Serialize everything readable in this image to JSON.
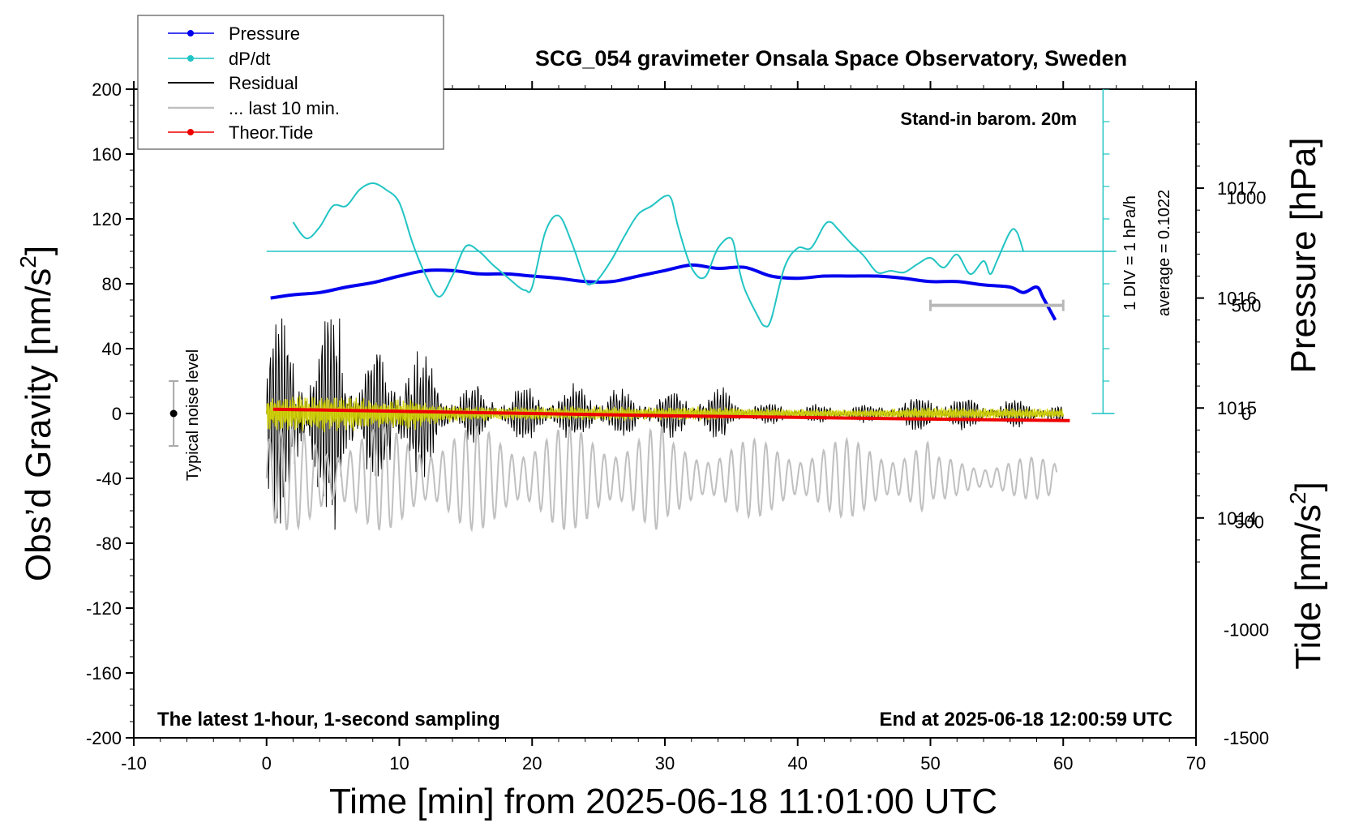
{
  "chart_data": {
    "type": "line",
    "title": "SCG_054 gravimeter Onsala Space Observatory, Sweden",
    "xlabel": "Time [min] from 2025-06-18 11:01:00 UTC",
    "ylabel_left_main": "Obs’d Gravity [nm/s",
    "ylabel_left_sup": "2",
    "ylabel_left_close": "]",
    "ylabel_right_top": "Pressure [hPa]",
    "ylabel_right_bottom_main": "Tide [nm/s",
    "ylabel_right_bottom_sup": "2",
    "ylabel_right_bottom_close": "]",
    "xlim": [
      -10,
      70
    ],
    "ylim": [
      -200,
      200
    ],
    "pressure_lim": [
      1012,
      1017.9
    ],
    "tide_lim": [
      -1500,
      1500
    ],
    "x_ticks": [
      "-10",
      "0",
      "10",
      "20",
      "30",
      "40",
      "50",
      "60",
      "70"
    ],
    "y_ticks": [
      "200",
      "160",
      "120",
      "80",
      "40",
      "0",
      "-40",
      "-80",
      "-120",
      "-160",
      "-200"
    ],
    "pressure_ticks": [
      "1017",
      "1016",
      "1015",
      "1014"
    ],
    "tide_ticks": [
      "1000",
      "500",
      "0",
      "-500",
      "-1000",
      "-1500"
    ],
    "annotations": {
      "stand_in": "Stand-in barom. 20m",
      "div_label": "1 DIV = 1 hPa/h",
      "average_label": "average = 0.1022",
      "noise_label": "Typical noise level",
      "latest_label": "The latest 1-hour, 1-second sampling",
      "end_label": "End at 2025-06-18 12:00:59 UTC"
    },
    "legend": {
      "position": "top-left",
      "entries": [
        {
          "label": "Pressure",
          "color": "#0000ee",
          "marker": true
        },
        {
          "label": "dP/dt",
          "color": "#22c4c4",
          "marker": true
        },
        {
          "label": "Residual",
          "color": "#000000",
          "marker": false
        },
        {
          "label": "... last 10 min.",
          "color": "#c0c0c0",
          "marker": false
        },
        {
          "label": "Theor.Tide",
          "color": "#ee0000",
          "marker": true
        }
      ]
    },
    "series": [
      {
        "name": "Pressure",
        "axis": "pressure",
        "color": "#0000ee",
        "x": [
          0.3,
          2,
          4,
          6,
          8,
          10,
          12,
          14,
          16,
          18,
          20,
          22,
          24,
          26,
          28,
          30,
          32,
          34,
          36,
          38,
          40,
          42,
          44,
          46,
          48,
          50,
          52,
          54,
          56,
          57,
          58,
          58.5,
          59.4
        ],
        "y": [
          1016.0,
          1016.03,
          1016.05,
          1016.1,
          1016.14,
          1016.2,
          1016.25,
          1016.25,
          1016.22,
          1016.22,
          1016.2,
          1016.18,
          1016.15,
          1016.15,
          1016.2,
          1016.25,
          1016.3,
          1016.27,
          1016.28,
          1016.2,
          1016.18,
          1016.2,
          1016.2,
          1016.2,
          1016.18,
          1016.15,
          1016.15,
          1016.12,
          1016.1,
          1016.05,
          1016.1,
          1016.0,
          1015.8
        ]
      },
      {
        "name": "dP/dt",
        "axis": "gravity",
        "color": "#22c4c4",
        "x": [
          2,
          3,
          4,
          5,
          6,
          7,
          8,
          9,
          10,
          11,
          12,
          13,
          14,
          15,
          16,
          17,
          18,
          19,
          19.5,
          20,
          21,
          22,
          23,
          24,
          24.5,
          25,
          26,
          27,
          28,
          29,
          30,
          30.5,
          31,
          32,
          33,
          34,
          35,
          35.5,
          36,
          37,
          37.5,
          38,
          39,
          40,
          41,
          42,
          42.5,
          43,
          44,
          45,
          46,
          47,
          48,
          49,
          50,
          51,
          52,
          53,
          54,
          54.5,
          55,
          56,
          56.5,
          57
        ],
        "y": [
          118,
          108,
          115,
          128,
          128,
          138,
          142,
          138,
          130,
          105,
          85,
          72,
          85,
          103,
          100,
          92,
          85,
          78,
          76,
          78,
          112,
          122,
          105,
          82,
          80,
          83,
          95,
          110,
          123,
          128,
          134,
          132,
          115,
          90,
          84,
          102,
          108,
          92,
          77,
          60,
          54,
          58,
          90,
          102,
          102,
          116,
          118,
          114,
          105,
          97,
          87,
          88,
          87,
          92,
          96,
          90,
          98,
          86,
          94,
          86,
          94,
          112,
          112,
          100
        ]
      },
      {
        "name": "Theor.Tide",
        "axis": "tide",
        "color": "#ee0000",
        "x": [
          0.5,
          10,
          20,
          30,
          40,
          50,
          60.5
        ],
        "y": [
          20,
          10,
          0,
          -10,
          -18,
          -26,
          -33
        ]
      }
    ],
    "residual_envelope": {
      "x": [
        0,
        2,
        4,
        5.5,
        7,
        9,
        11,
        12,
        14,
        16,
        18,
        20,
        22,
        24,
        26,
        28,
        30,
        32,
        34,
        36,
        38,
        40,
        42,
        44,
        46,
        48,
        50,
        52,
        54,
        56,
        58,
        60
      ],
      "amplitude": [
        55,
        70,
        50,
        78,
        45,
        40,
        50,
        30,
        18,
        17,
        14,
        15,
        14,
        16,
        16,
        12,
        14,
        15,
        15,
        8,
        6,
        6,
        5,
        5,
        5,
        8,
        12,
        10,
        9,
        8,
        8,
        5
      ]
    },
    "last_10_min_bar": {
      "x_start": 50,
      "x_end": 60,
      "tide_value": 500
    },
    "noise_level": {
      "x": -7,
      "center": 0,
      "range": [
        -20,
        20
      ]
    },
    "dpdt_baseline": 100,
    "dpdt_axis": {
      "x": 63,
      "from": 0,
      "to": 200,
      "divisions": 10
    }
  }
}
